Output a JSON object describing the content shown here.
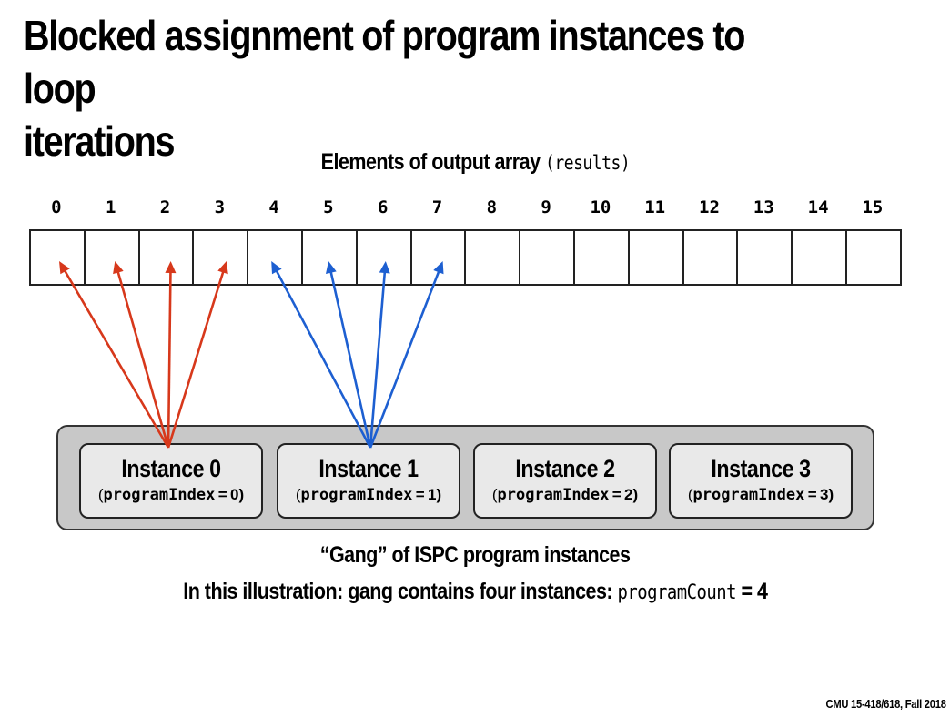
{
  "title": {
    "line1": "Blocked assignment of program instances to loop",
    "line2": "iterations"
  },
  "array_caption": {
    "text": "Elements of output array",
    "code": "(results)"
  },
  "indices": [
    "0",
    "1",
    "2",
    "3",
    "4",
    "5",
    "6",
    "7",
    "8",
    "9",
    "10",
    "11",
    "12",
    "13",
    "14",
    "15"
  ],
  "instances": [
    {
      "name": "Instance 0",
      "sub_prefix": "(",
      "sub_code": "programIndex",
      "sub_suffix": " = 0)",
      "color": "#d7381b",
      "targets": [
        0,
        1,
        2,
        3
      ]
    },
    {
      "name": "Instance 1",
      "sub_prefix": "(",
      "sub_code": "programIndex",
      "sub_suffix": " = 1)",
      "color": "#1d5fd1",
      "targets": [
        4,
        5,
        6,
        7
      ]
    },
    {
      "name": "Instance 2",
      "sub_prefix": "(",
      "sub_code": "programIndex",
      "sub_suffix": " = 2)",
      "color": "",
      "targets": []
    },
    {
      "name": "Instance 3",
      "sub_prefix": "(",
      "sub_code": "programIndex",
      "sub_suffix": " = 3)",
      "color": "",
      "targets": []
    }
  ],
  "gang_caption": "“Gang” of ISPC program instances",
  "count_caption": {
    "text": "In this illustration: gang contains four instances: ",
    "code": "programCount",
    "value": " = 4"
  },
  "footer": "CMU 15-418/618, Fall 2018"
}
